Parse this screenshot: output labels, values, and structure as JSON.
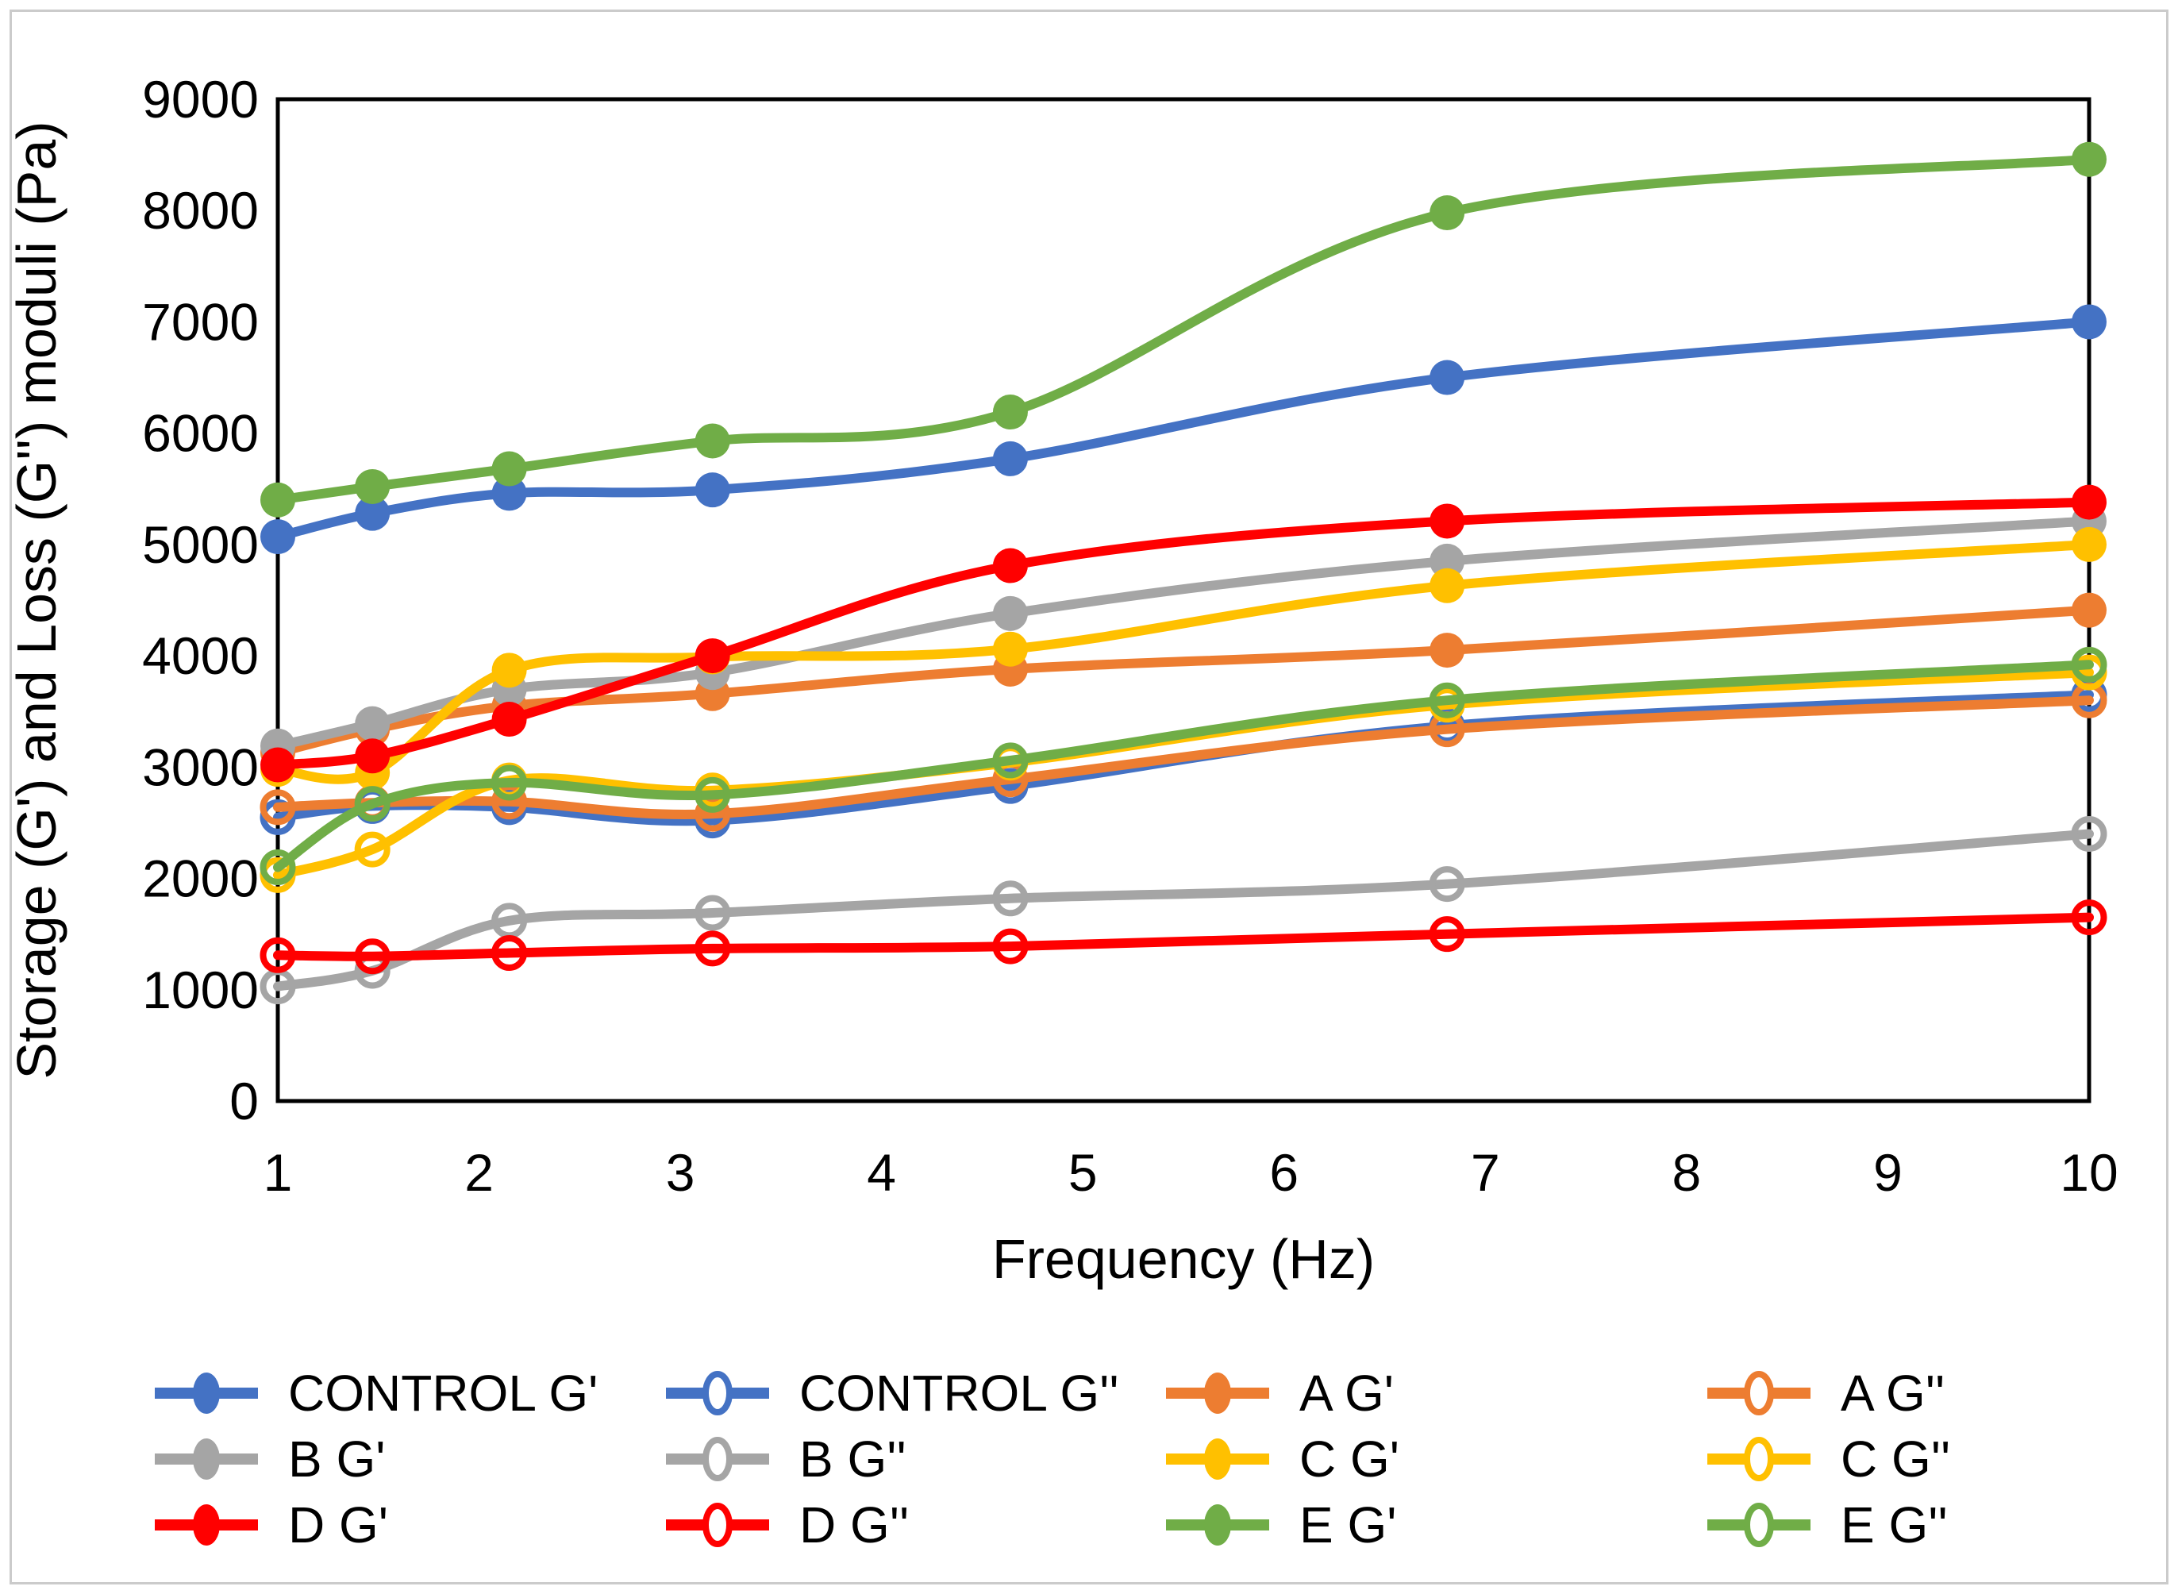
{
  "figure": {
    "background": "#FFFFFF",
    "border_color": "#CBCBCB",
    "plot_frame_color": "#000000"
  },
  "chart_data": {
    "type": "line",
    "title": "",
    "xlabel": "Frequency (Hz)",
    "ylabel": "Storage (G') and Loss (G'') moduli (Pa)",
    "xlim": [
      1,
      10
    ],
    "ylim": [
      0,
      9000
    ],
    "x_tick_labels": [
      "1",
      "2",
      "3",
      "4",
      "5",
      "6",
      "7",
      "8",
      "9",
      "10"
    ],
    "y_tick_labels": [
      "0",
      "1000",
      "2000",
      "3000",
      "4000",
      "5000",
      "6000",
      "7000",
      "8000",
      "9000"
    ],
    "grid": false,
    "line_smoothing": true,
    "legend_position": "bottom",
    "legend_rows": 3,
    "legend_columns": 4,
    "x": [
      1,
      1.47,
      2.15,
      3.16,
      4.64,
      6.81,
      10
    ],
    "series": [
      {
        "name": "CONTROL G'",
        "color": "#4472C4",
        "marker": "filled",
        "values": [
          5070,
          5280,
          5460,
          5490,
          5770,
          6500,
          7000
        ]
      },
      {
        "name": "CONTROL G''",
        "color": "#4472C4",
        "marker": "open",
        "values": [
          2550,
          2650,
          2640,
          2520,
          2830,
          3370,
          3650
        ]
      },
      {
        "name": "A G'",
        "color": "#ED7D31",
        "marker": "filled",
        "values": [
          3130,
          3340,
          3550,
          3660,
          3880,
          4050,
          4410
        ]
      },
      {
        "name": "A G''",
        "color": "#ED7D31",
        "marker": "open",
        "values": [
          2640,
          2680,
          2690,
          2580,
          2890,
          3340,
          3600
        ]
      },
      {
        "name": "B G'",
        "color": "#A5A5A5",
        "marker": "filled",
        "values": [
          3190,
          3390,
          3700,
          3850,
          4380,
          4850,
          5210
        ]
      },
      {
        "name": "B G''",
        "color": "#A5A5A5",
        "marker": "open",
        "values": [
          1030,
          1170,
          1620,
          1690,
          1820,
          1950,
          2400
        ]
      },
      {
        "name": "C G'",
        "color": "#FFC000",
        "marker": "filled",
        "values": [
          2980,
          2950,
          3870,
          3990,
          4060,
          4630,
          5000
        ]
      },
      {
        "name": "C G''",
        "color": "#FFC000",
        "marker": "open",
        "values": [
          2030,
          2260,
          2880,
          2790,
          3040,
          3560,
          3850
        ]
      },
      {
        "name": "D G'",
        "color": "#FF0000",
        "marker": "filled",
        "values": [
          3020,
          3100,
          3430,
          4000,
          4810,
          5210,
          5380
        ]
      },
      {
        "name": "D G''",
        "color": "#FF0000",
        "marker": "open",
        "values": [
          1310,
          1300,
          1330,
          1370,
          1390,
          1500,
          1650
        ]
      },
      {
        "name": "E G'",
        "color": "#70AD47",
        "marker": "filled",
        "values": [
          5400,
          5520,
          5680,
          5930,
          6190,
          7980,
          8460
        ]
      },
      {
        "name": "E G''",
        "color": "#70AD47",
        "marker": "open",
        "values": [
          2100,
          2670,
          2860,
          2750,
          3060,
          3600,
          3920
        ]
      }
    ]
  }
}
